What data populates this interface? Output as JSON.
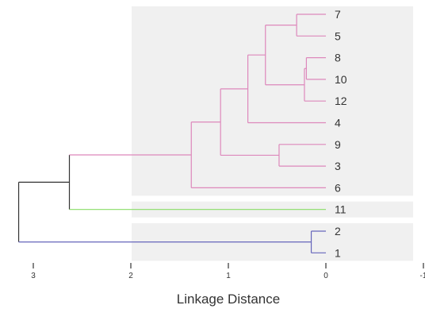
{
  "chart_data": {
    "type": "dendrogram",
    "xlabel": "Linkage Distance",
    "xlim": [
      3.15,
      -1
    ],
    "x_ticks": [
      3,
      2,
      1,
      0,
      -1
    ],
    "x_tick_labels": [
      "3",
      "2",
      "1",
      "0",
      "-1"
    ],
    "leaves": [
      "7",
      "5",
      "8",
      "10",
      "12",
      "4",
      "9",
      "3",
      "6",
      "11",
      "2",
      "1"
    ],
    "merges": [
      {
        "id": "m_8_10",
        "children": [
          "8",
          "10"
        ],
        "height": 0.2
      },
      {
        "id": "m_8_10_12",
        "children": [
          "m_8_10",
          "12"
        ],
        "height": 0.22
      },
      {
        "id": "m_7_5",
        "children": [
          "7",
          "5"
        ],
        "height": 0.3
      },
      {
        "id": "m_9_3",
        "children": [
          "9",
          "3"
        ],
        "height": 0.48
      },
      {
        "id": "m_2_1",
        "children": [
          "2",
          "1"
        ],
        "height": 0.15
      },
      {
        "id": "m_A",
        "children": [
          "m_7_5",
          "m_8_10_12"
        ],
        "height": 0.62
      },
      {
        "id": "m_B",
        "children": [
          "m_A",
          "4"
        ],
        "height": 0.8
      },
      {
        "id": "m_C",
        "children": [
          "m_B",
          "m_9_3"
        ],
        "height": 1.08
      },
      {
        "id": "m_D",
        "children": [
          "m_C",
          "6"
        ],
        "height": 1.38
      },
      {
        "id": "m_E",
        "children": [
          "m_D",
          "11"
        ],
        "height": 2.63
      },
      {
        "id": "m_root",
        "children": [
          "m_E",
          "m_2_1"
        ],
        "height": 3.15
      }
    ],
    "clusters": [
      {
        "leaves": [
          "7",
          "5",
          "8",
          "10",
          "12",
          "4",
          "9",
          "3",
          "6"
        ],
        "color": "#dd88bb"
      },
      {
        "leaves": [
          "11"
        ],
        "color": "#88dd66"
      },
      {
        "leaves": [
          "2",
          "1"
        ],
        "color": "#6666bb"
      }
    ],
    "root_color": "#333333",
    "band_color": "#f0f0f0"
  }
}
